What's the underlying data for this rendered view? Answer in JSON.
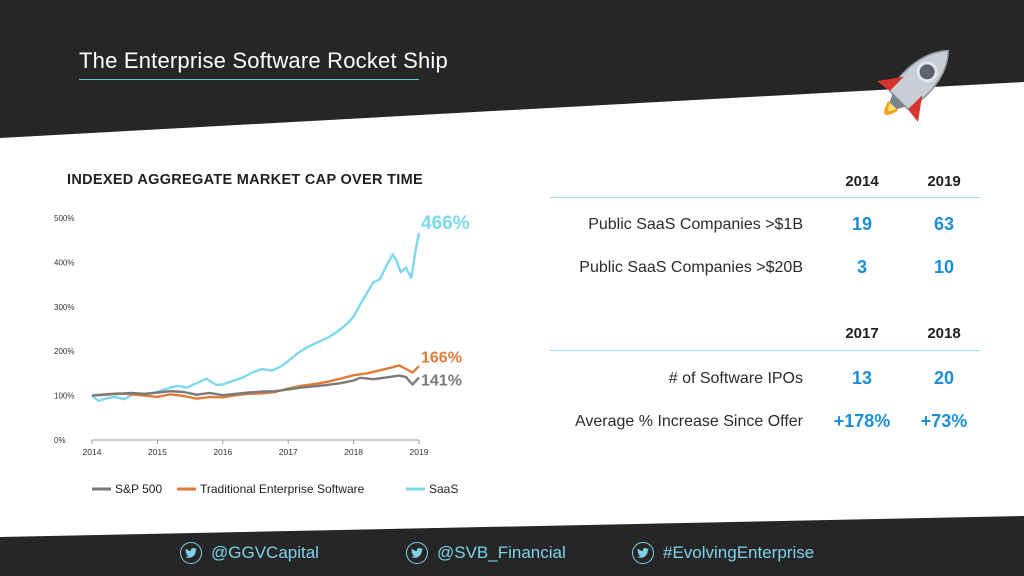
{
  "header": {
    "title": "The Enterprise Software Rocket Ship"
  },
  "rocket": {
    "icon": "rocket-icon"
  },
  "chart_title": "INDEXED AGGREGATE MARKET CAP OVER TIME",
  "chart_data": {
    "type": "line",
    "title": "INDEXED AGGREGATE MARKET CAP OVER TIME",
    "xlabel": "",
    "ylabel": "",
    "xlim": [
      2014,
      2019
    ],
    "ylim": [
      0,
      500
    ],
    "x_ticks": [
      "2014",
      "2015",
      "2016",
      "2017",
      "2018",
      "2019"
    ],
    "y_ticks": [
      "0%",
      "100%",
      "200%",
      "300%",
      "400%",
      "500%"
    ],
    "grid": false,
    "legend": "bottom",
    "series": [
      {
        "name": "S&P 500",
        "color": "#7a7a7a",
        "end_label": "141%",
        "points": [
          [
            2014,
            100
          ],
          [
            2014.2,
            102
          ],
          [
            2014.4,
            104
          ],
          [
            2014.6,
            106
          ],
          [
            2014.8,
            104
          ],
          [
            2015,
            107
          ],
          [
            2015.2,
            110
          ],
          [
            2015.4,
            108
          ],
          [
            2015.6,
            102
          ],
          [
            2015.8,
            106
          ],
          [
            2016,
            101
          ],
          [
            2016.2,
            104
          ],
          [
            2016.4,
            107
          ],
          [
            2016.6,
            109
          ],
          [
            2016.8,
            110
          ],
          [
            2017,
            114
          ],
          [
            2017.2,
            118
          ],
          [
            2017.4,
            121
          ],
          [
            2017.6,
            124
          ],
          [
            2017.8,
            128
          ],
          [
            2018,
            134
          ],
          [
            2018.1,
            140
          ],
          [
            2018.3,
            137
          ],
          [
            2018.5,
            141
          ],
          [
            2018.7,
            145
          ],
          [
            2018.8,
            142
          ],
          [
            2018.9,
            125
          ],
          [
            2019,
            141
          ]
        ]
      },
      {
        "name": "Traditional Enterprise Software",
        "color": "#e07b39",
        "end_label": "166%",
        "points": [
          [
            2014,
            100
          ],
          [
            2014.2,
            103
          ],
          [
            2014.4,
            105
          ],
          [
            2014.6,
            103
          ],
          [
            2014.8,
            100
          ],
          [
            2015,
            97
          ],
          [
            2015.2,
            103
          ],
          [
            2015.4,
            99
          ],
          [
            2015.6,
            93
          ],
          [
            2015.8,
            97
          ],
          [
            2016,
            96
          ],
          [
            2016.2,
            101
          ],
          [
            2016.4,
            104
          ],
          [
            2016.6,
            105
          ],
          [
            2016.8,
            108
          ],
          [
            2017,
            116
          ],
          [
            2017.2,
            122
          ],
          [
            2017.4,
            126
          ],
          [
            2017.6,
            131
          ],
          [
            2017.8,
            138
          ],
          [
            2018,
            146
          ],
          [
            2018.2,
            150
          ],
          [
            2018.4,
            157
          ],
          [
            2018.6,
            164
          ],
          [
            2018.7,
            168
          ],
          [
            2018.8,
            160
          ],
          [
            2018.9,
            152
          ],
          [
            2019,
            166
          ]
        ]
      },
      {
        "name": "SaaS",
        "color": "#7dd8ee",
        "end_label": "466%",
        "points": [
          [
            2014,
            100
          ],
          [
            2014.1,
            88
          ],
          [
            2014.2,
            93
          ],
          [
            2014.35,
            97
          ],
          [
            2014.5,
            92
          ],
          [
            2014.65,
            105
          ],
          [
            2014.8,
            101
          ],
          [
            2015,
            108
          ],
          [
            2015.15,
            116
          ],
          [
            2015.3,
            122
          ],
          [
            2015.45,
            118
          ],
          [
            2015.6,
            128
          ],
          [
            2015.75,
            138
          ],
          [
            2015.9,
            124
          ],
          [
            2016,
            125
          ],
          [
            2016.15,
            133
          ],
          [
            2016.3,
            140
          ],
          [
            2016.45,
            152
          ],
          [
            2016.6,
            160
          ],
          [
            2016.75,
            156
          ],
          [
            2016.9,
            167
          ],
          [
            2017,
            178
          ],
          [
            2017.15,
            196
          ],
          [
            2017.3,
            210
          ],
          [
            2017.45,
            220
          ],
          [
            2017.6,
            230
          ],
          [
            2017.75,
            244
          ],
          [
            2017.9,
            262
          ],
          [
            2018,
            278
          ],
          [
            2018.1,
            305
          ],
          [
            2018.2,
            330
          ],
          [
            2018.3,
            355
          ],
          [
            2018.4,
            362
          ],
          [
            2018.5,
            392
          ],
          [
            2018.6,
            418
          ],
          [
            2018.65,
            406
          ],
          [
            2018.72,
            378
          ],
          [
            2018.8,
            388
          ],
          [
            2018.88,
            365
          ],
          [
            2018.95,
            428
          ],
          [
            2019,
            466
          ]
        ]
      }
    ]
  },
  "stats": {
    "section1": {
      "years": [
        "2014",
        "2019"
      ],
      "rows": [
        {
          "label": "Public SaaS Companies >$1B",
          "values": [
            "19",
            "63"
          ]
        },
        {
          "label": "Public SaaS Companies >$20B",
          "values": [
            "3",
            "10"
          ]
        }
      ]
    },
    "section2": {
      "years": [
        "2017",
        "2018"
      ],
      "rows": [
        {
          "label": "# of Software IPOs",
          "values": [
            "13",
            "20"
          ]
        },
        {
          "label": "Average % Increase Since Offer",
          "values": [
            "+178%",
            "+73%"
          ]
        }
      ]
    }
  },
  "footer": {
    "handles": [
      "@GGVCapital",
      "@SVB_Financial",
      "#EvolvingEnterprise"
    ],
    "icon": "twitter-icon",
    "color": "#7dd3ec"
  }
}
